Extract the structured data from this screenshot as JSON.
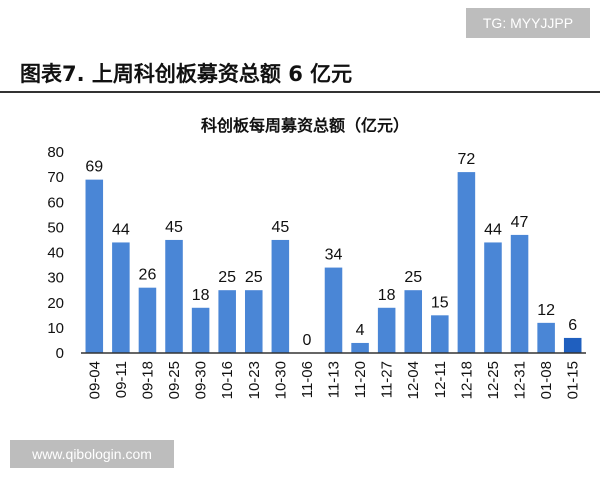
{
  "watermark_top": "TG: MYYJJPP",
  "figure_title": "图表7. 上周科创板募资总额 6 亿元",
  "watermark_bottom": "www.qibologin.com",
  "colors": {
    "bar": "#4a86d6",
    "bar_highlight": "#1f5fbf",
    "axis": "#333333"
  },
  "chart_data": {
    "type": "bar",
    "title": "科创板每周募资总额（亿元）",
    "categories": [
      "09-04",
      "09-11",
      "09-18",
      "09-25",
      "09-30",
      "10-16",
      "10-23",
      "10-30",
      "11-06",
      "11-13",
      "11-20",
      "11-27",
      "12-04",
      "12-11",
      "12-18",
      "12-25",
      "12-31",
      "01-08",
      "01-15"
    ],
    "values": [
      69,
      44,
      26,
      45,
      18,
      25,
      25,
      45,
      0,
      34,
      4,
      18,
      25,
      15,
      72,
      44,
      47,
      12,
      6
    ],
    "highlight_index": 18,
    "ylim": [
      0,
      80
    ],
    "yticks": [
      0,
      10,
      20,
      30,
      40,
      50,
      60,
      70,
      80
    ],
    "grid": false
  }
}
